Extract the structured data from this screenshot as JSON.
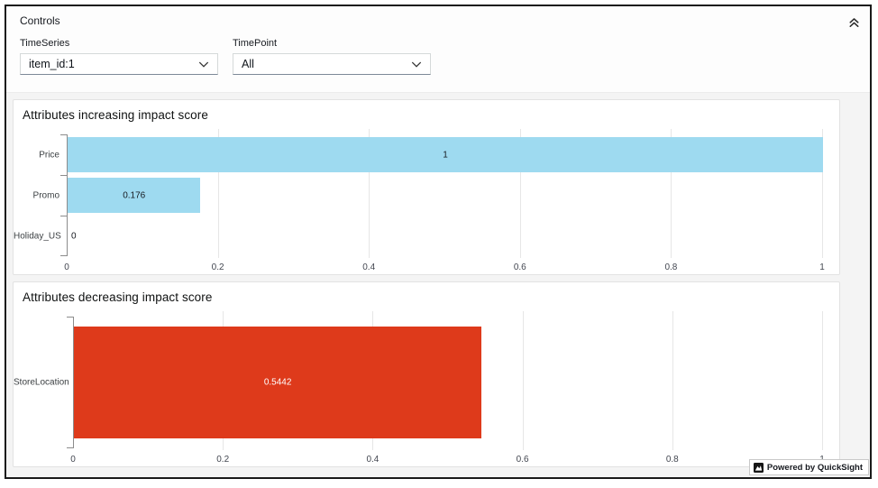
{
  "controls": {
    "title": "Controls",
    "filters": [
      {
        "label": "TimeSeries",
        "value": "item_id:1"
      },
      {
        "label": "TimePoint",
        "value": "All"
      }
    ]
  },
  "chart_data": [
    {
      "type": "bar",
      "orientation": "horizontal",
      "title": "Attributes increasing impact score",
      "categories": [
        "Price",
        "Promo",
        "Holiday_US"
      ],
      "values": [
        1,
        0.176,
        0
      ],
      "value_labels": [
        "1",
        "0.176",
        "0"
      ],
      "xlim": [
        0,
        1
      ],
      "xticks": [
        0,
        0.2,
        0.4,
        0.6,
        0.8,
        1
      ],
      "xtick_labels": [
        "0",
        "0.2",
        "0.4",
        "0.6",
        "0.8",
        "1"
      ],
      "bar_color": "#9EDAF0",
      "value_label_color": "#16191f",
      "grid": true,
      "legend": "none"
    },
    {
      "type": "bar",
      "orientation": "horizontal",
      "title": "Attributes decreasing impact score",
      "categories": [
        "StoreLocation"
      ],
      "values": [
        0.5442
      ],
      "value_labels": [
        "0.5442"
      ],
      "xlim": [
        0,
        1
      ],
      "xticks": [
        0,
        0.2,
        0.4,
        0.6,
        0.8,
        1
      ],
      "xtick_labels": [
        "0",
        "0.2",
        "0.4",
        "0.6",
        "0.8",
        "1"
      ],
      "bar_color": "#DE3A1B",
      "value_label_color": "#ffffff",
      "grid": true,
      "legend": "none"
    }
  ],
  "footer": {
    "badge_text": "Powered by QuickSight"
  },
  "colors": {
    "frame_border": "#1a1a1a",
    "panel_background": "#ffffff",
    "canvas_background": "#f4f4f4",
    "gridline": "#e6e6e6",
    "axis": "#8c8c8c"
  }
}
